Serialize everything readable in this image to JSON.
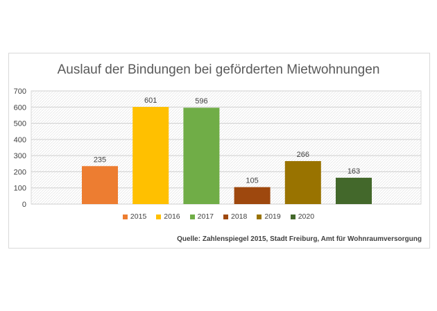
{
  "chart_data": {
    "type": "bar",
    "title": "Auslauf der Bindungen bei geförderten Mietwohnungen",
    "categories": [
      "2015",
      "2016",
      "2017",
      "2018",
      "2019",
      "2020"
    ],
    "values": [
      235,
      601,
      596,
      105,
      266,
      163
    ],
    "colors": [
      "#ed7d31",
      "#ffc000",
      "#70ad47",
      "#9e480e",
      "#997300",
      "#43682b"
    ],
    "ylim": [
      0,
      700
    ],
    "yticks": [
      "0",
      "100",
      "200",
      "300",
      "400",
      "500",
      "600",
      "700"
    ],
    "grid": true,
    "legend_position": "bottom",
    "source": "Quelle: Zahlenspiegel 2015, Stadt Freiburg, Amt für Wohnraumversorgung"
  }
}
